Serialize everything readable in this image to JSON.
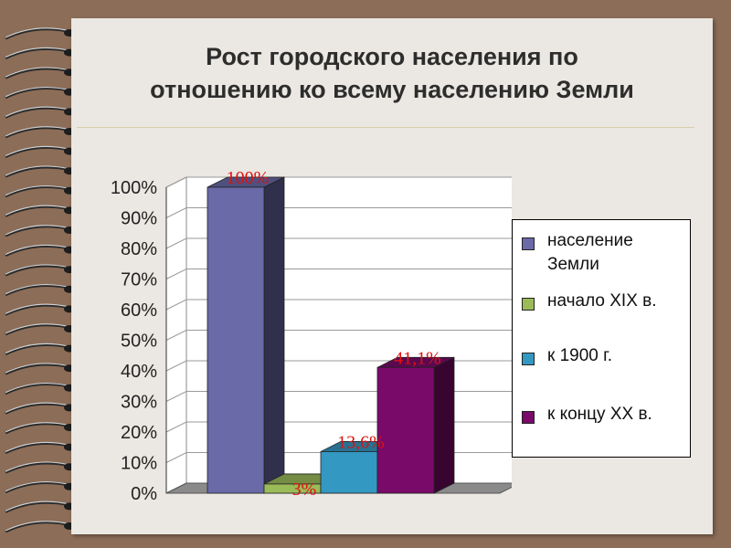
{
  "slide": {
    "title_line1": "Рост городского населения по",
    "title_line2": "отношению ко всему населению Земли"
  },
  "chart_data": {
    "type": "bar",
    "style": "3d-columns",
    "categories": [
      "население Земли",
      "начало XIX в.",
      "к 1900 г.",
      "к концу XX в."
    ],
    "values": [
      100,
      3,
      13.6,
      41.1
    ],
    "data_labels": [
      "100%",
      "3%",
      "13,6%",
      "41,1%"
    ],
    "y_ticks": [
      "0%",
      "10%",
      "20%",
      "30%",
      "40%",
      "50%",
      "60%",
      "70%",
      "80%",
      "90%",
      "100%"
    ],
    "ylim": [
      0,
      100
    ],
    "grid": true,
    "legend_position": "right",
    "colors": [
      "#6a6aa8",
      "#9bbb59",
      "#3398c2",
      "#7a0a6a"
    ],
    "data_label_color": "#e01010"
  }
}
